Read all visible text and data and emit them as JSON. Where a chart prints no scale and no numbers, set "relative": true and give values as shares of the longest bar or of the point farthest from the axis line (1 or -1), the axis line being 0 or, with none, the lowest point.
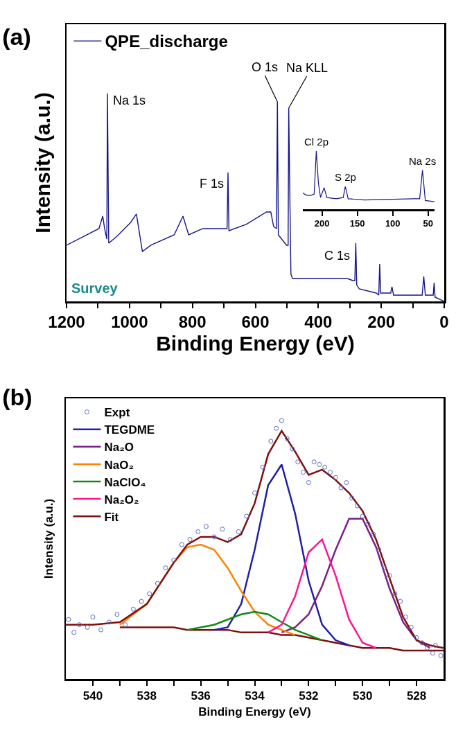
{
  "chart_data": [
    {
      "type": "line",
      "title": "(a)",
      "xlabel": "Binding Energy (eV)",
      "ylabel": "Intensity (a.u.)",
      "relative": true,
      "x": [
        1200,
        1097,
        1085,
        1079,
        1072,
        1070,
        1066,
        1042,
        996,
        978,
        959,
        932,
        858,
        830,
        812,
        767,
        690,
        687,
        684,
        629,
        565,
        551,
        542,
        533,
        530,
        527,
        501,
        496,
        494,
        490,
        487,
        482,
        308,
        290,
        284,
        281,
        278,
        270,
        216,
        208,
        205,
        202,
        170,
        166,
        161,
        70,
        65,
        60,
        35,
        32,
        29,
        0
      ],
      "series": [
        {
          "name": "QPE_discharge",
          "color": "#15158a",
          "values": [
            0.27,
            0.35,
            0.41,
            0.35,
            0.3,
            1.0,
            0.28,
            0.31,
            0.38,
            0.42,
            0.24,
            0.27,
            0.32,
            0.41,
            0.32,
            0.35,
            0.35,
            0.62,
            0.34,
            0.37,
            0.43,
            0.43,
            0.36,
            0.35,
            0.96,
            0.32,
            0.27,
            0.27,
            0.93,
            0.45,
            0.13,
            0.11,
            0.11,
            0.1,
            0.1,
            0.28,
            0.08,
            0.06,
            0.04,
            0.03,
            0.18,
            0.04,
            0.04,
            0.07,
            0.03,
            0.03,
            0.12,
            0.03,
            0.03,
            0.09,
            0.02,
            0
          ]
        }
      ],
      "xlim": [
        1200,
        0
      ],
      "xticks": [
        1200,
        {
          "value": 1100,
          "label": null
        },
        1000,
        {
          "value": 900,
          "label": null
        },
        800,
        {
          "value": 700,
          "label": null
        },
        600,
        {
          "value": 500,
          "label": null
        },
        400,
        {
          "value": 300,
          "label": null
        },
        200,
        {
          "value": 100,
          "label": null
        },
        0
      ],
      "tick_labels": "x",
      "legend": "top left",
      "annotations": [
        {
          "text": "Na 1s",
          "x": 1070,
          "y": 1.0
        },
        {
          "text": "F 1s",
          "x": 687,
          "y": 0.62
        },
        {
          "text": "O 1s",
          "x": 530,
          "y": 0.96
        },
        {
          "text": "Na KLL",
          "x": 494,
          "y": 0.93
        },
        {
          "text": "C 1s",
          "x": 281,
          "y": 0.28
        },
        "Survey"
      ]
    },
    {
      "type": "line",
      "relative": true,
      "x": [
        227,
        222,
        215,
        211,
        208,
        205,
        202,
        197,
        193,
        180,
        170,
        167,
        163,
        140,
        100,
        70,
        62,
        58,
        54,
        41
      ],
      "series": [
        {
          "color": "#15158a",
          "values": [
            0.28,
            0.24,
            0.24,
            0.26,
            1.0,
            0.45,
            0.2,
            0.37,
            0.2,
            0.18,
            0.2,
            0.39,
            0.18,
            0.16,
            0.17,
            0.18,
            0.18,
            0.67,
            0.15,
            0.13
          ]
        }
      ],
      "xlim": [
        227,
        41
      ],
      "xticks": [
        200,
        150,
        100,
        50
      ],
      "tick_labels": "x",
      "annotations": [
        {
          "text": "Cl 2p",
          "x": 208,
          "y": 1.0
        },
        {
          "text": "S 2p",
          "x": 167,
          "y": 0.39
        },
        {
          "text": "Na 2s",
          "x": 58,
          "y": 0.67
        }
      ]
    },
    {
      "type": "line",
      "xlabel": "Binding Energy (eV)",
      "ylabel": "Intensity (a.u.)",
      "relative": true,
      "title": "(b)",
      "x": [
        541,
        540,
        539,
        538,
        537,
        536.5,
        536,
        535.5,
        535,
        534.5,
        534,
        533.5,
        533,
        532.5,
        532,
        531.5,
        531,
        530.5,
        530,
        529.5,
        529,
        528.5,
        528,
        527.5,
        527
      ],
      "series": [
        {
          "color": "#7f0f0f",
          "values": [
            null,
            null,
            0.2,
            0.2,
            0.2,
            0.19,
            0.19,
            0.19,
            0.19,
            0.18,
            0.18,
            0.18,
            0.17,
            0.17,
            0.16,
            0.15,
            0.14,
            0.13,
            0.12,
            0.12,
            0.12,
            0.11,
            0.11,
            0.11,
            0.11
          ]
        },
        {
          "name": "Expt",
          "type": "scatter",
          "marker": "circle",
          "color": "#5a6cc8",
          "x": [
            540.9,
            540.7,
            540.5,
            540.2,
            540,
            539.7,
            539.4,
            539.1,
            538.8,
            538.5,
            538.2,
            537.9,
            537.6,
            537.3,
            537,
            536.7,
            536.4,
            536.1,
            535.8,
            535.5,
            535.2,
            534.9,
            534.6,
            534.3,
            534,
            533.7,
            533.4,
            533.2,
            533,
            532.8,
            532.6,
            532.4,
            532.2,
            532,
            531.8,
            531.6,
            531.4,
            531.2,
            531,
            530.8,
            530.6,
            530.4,
            530.2,
            530,
            529.8,
            529.6,
            529.4,
            529.2,
            529,
            528.8,
            528.6,
            528.4,
            528.2,
            528,
            527.8,
            527.6,
            527.4,
            527.3,
            527.1
          ],
          "values": [
            0.23,
            0.18,
            0.21,
            0.2,
            0.24,
            0.19,
            0.22,
            0.25,
            0.21,
            0.27,
            0.3,
            0.33,
            0.37,
            0.43,
            0.46,
            0.52,
            0.54,
            0.57,
            0.59,
            0.55,
            0.58,
            0.54,
            0.57,
            0.63,
            0.72,
            0.82,
            0.92,
            0.97,
            1.0,
            0.93,
            0.89,
            0.84,
            0.8,
            0.76,
            0.84,
            0.83,
            0.82,
            0.8,
            0.78,
            0.74,
            0.76,
            0.7,
            0.67,
            0.63,
            0.6,
            0.56,
            0.5,
            0.43,
            0.4,
            0.33,
            0.3,
            0.24,
            0.2,
            0.16,
            0.14,
            0.12,
            0.1,
            0.13,
            0.09
          ]
        },
        {
          "name": "TEGDME",
          "color": "#1f1fa8",
          "values": [
            null,
            null,
            null,
            null,
            null,
            null,
            null,
            0.19,
            0.2,
            0.29,
            0.5,
            0.75,
            0.83,
            0.64,
            0.38,
            0.21,
            0.15,
            0.13,
            null,
            null,
            null,
            null,
            null,
            null,
            null
          ]
        },
        {
          "name": "Na₂O",
          "color": "#7b1f86",
          "values": [
            null,
            null,
            null,
            null,
            null,
            null,
            null,
            null,
            null,
            null,
            null,
            null,
            0.18,
            0.2,
            0.25,
            0.36,
            0.5,
            0.62,
            0.62,
            0.51,
            0.35,
            0.22,
            0.15,
            0.12,
            null
          ]
        },
        {
          "name": "NaO₂",
          "color": "#ff8000",
          "values": [
            null,
            null,
            0.21,
            0.29,
            0.45,
            0.51,
            0.52,
            0.5,
            0.43,
            0.34,
            0.26,
            0.21,
            0.19,
            0.17,
            null,
            null,
            null,
            null,
            null,
            null,
            null,
            null,
            null,
            null,
            null
          ]
        },
        {
          "name": "NaClO₄",
          "color": "#138a13",
          "values": [
            null,
            null,
            null,
            null,
            null,
            0.19,
            0.2,
            0.21,
            0.23,
            0.25,
            0.26,
            0.25,
            0.22,
            0.19,
            0.17,
            0.15,
            null,
            null,
            null,
            null,
            null,
            null,
            null,
            null,
            null
          ]
        },
        {
          "name": "Na₂O₂",
          "color": "#ff1493",
          "values": [
            null,
            null,
            null,
            null,
            null,
            null,
            null,
            null,
            null,
            null,
            null,
            0.18,
            0.21,
            0.32,
            0.49,
            0.54,
            0.4,
            0.23,
            0.14,
            0.12,
            null,
            null,
            null,
            null,
            null
          ]
        },
        {
          "name": "Fit",
          "color": "#7f0f0f",
          "values": [
            0.21,
            0.21,
            0.22,
            0.29,
            0.45,
            0.52,
            0.55,
            0.55,
            0.53,
            0.56,
            0.68,
            0.87,
            0.96,
            0.88,
            0.79,
            0.81,
            0.77,
            0.72,
            0.65,
            0.54,
            0.39,
            0.24,
            0.15,
            0.13,
            0.12
          ]
        }
      ],
      "xlim": [
        541,
        527
      ],
      "xticks": [
        540,
        {
          "value": 539,
          "label": null
        },
        538,
        {
          "value": 537,
          "label": null
        },
        536,
        {
          "value": 535,
          "label": null
        },
        534,
        {
          "value": 533,
          "label": null
        },
        532,
        {
          "value": 531,
          "label": null
        },
        530,
        {
          "value": 529,
          "label": null
        },
        528
      ],
      "tick_labels": "x",
      "legend": "top left"
    }
  ]
}
